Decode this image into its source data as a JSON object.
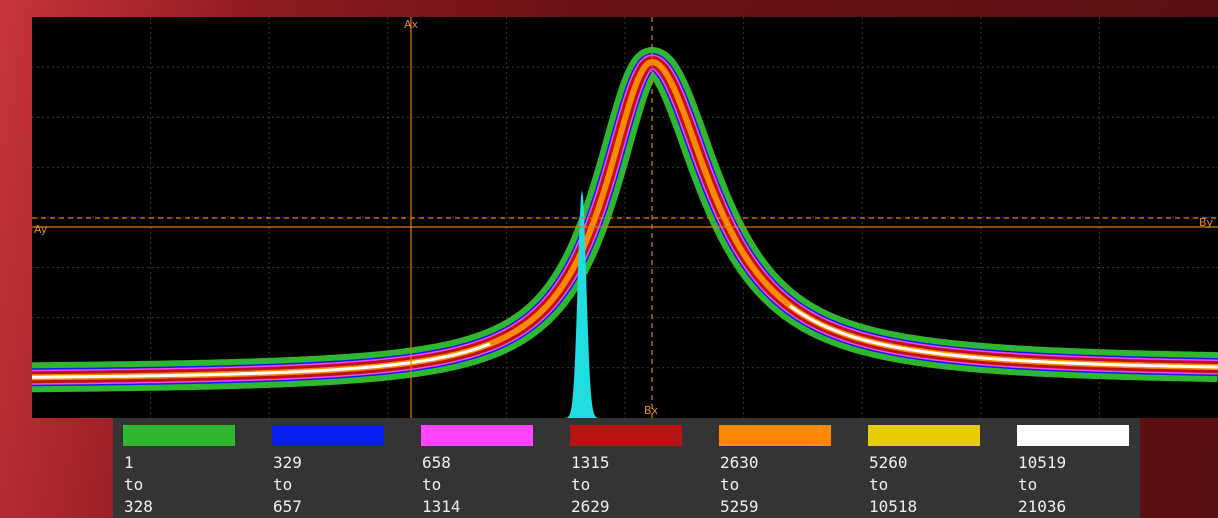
{
  "cursors": {
    "ax": "Ax",
    "ay": "Ay",
    "bx": "Bx",
    "by": "By"
  },
  "legend": [
    {
      "color": "#2fb82f",
      "from": "1",
      "to_word": "to",
      "to": "328"
    },
    {
      "color": "#0a1ef0",
      "from": "329",
      "to_word": "to",
      "to": "657"
    },
    {
      "color": "#ff44ff",
      "from": "658",
      "to_word": "to",
      "to": "1314"
    },
    {
      "color": "#b81414",
      "from": "1315",
      "to_word": "to",
      "to": "2629"
    },
    {
      "color": "#ff8800",
      "from": "2630",
      "to_word": "to",
      "to": "5259"
    },
    {
      "color": "#e6cc00",
      "from": "5260",
      "to_word": "to",
      "to": "10518"
    },
    {
      "color": "#ffffff",
      "from": "10519",
      "to_word": "to",
      "to": "21036"
    }
  ]
}
